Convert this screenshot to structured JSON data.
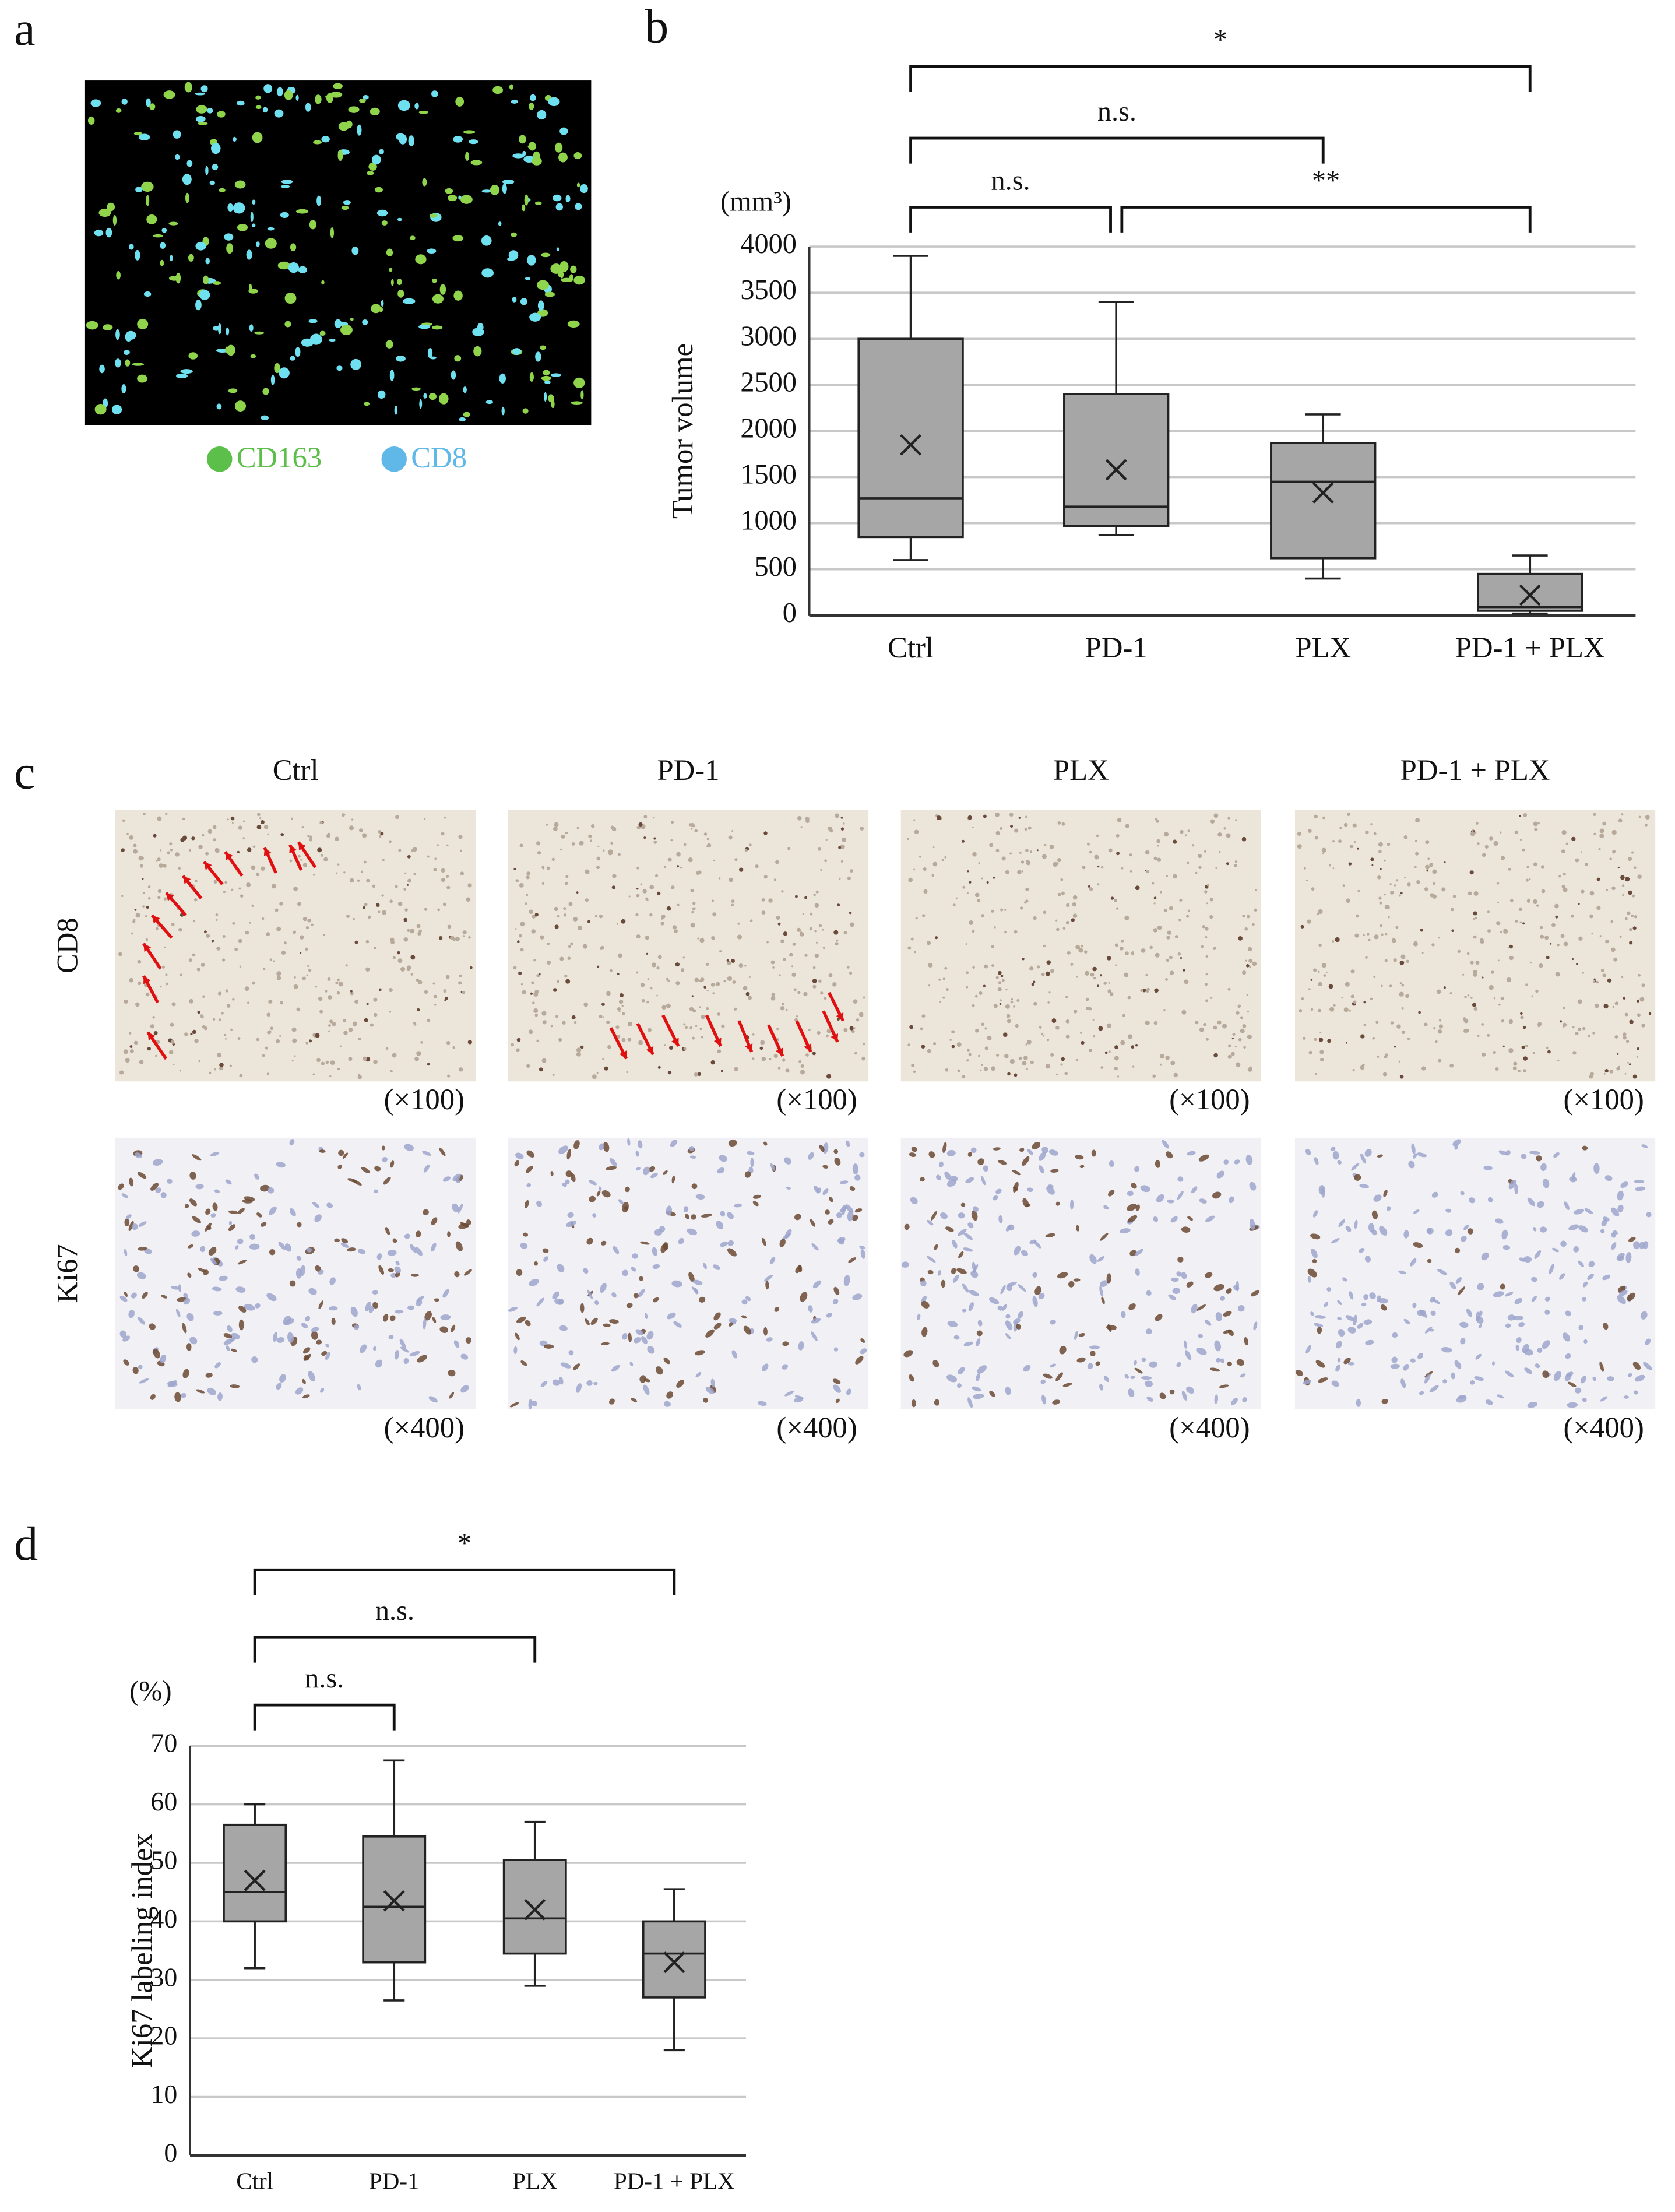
{
  "panel_a": {
    "letter": "a",
    "legend": [
      {
        "label": "CD163",
        "color": "#5cbf4a"
      },
      {
        "label": "CD8",
        "color": "#5fb8e8"
      }
    ]
  },
  "panel_c": {
    "letter": "c",
    "columns": [
      "Ctrl",
      "PD-1",
      "PLX",
      "PD-1 + PLX"
    ],
    "rows": [
      "CD8",
      "Ki67"
    ],
    "magnifications": [
      "(×100)",
      "(×400)"
    ]
  },
  "chart_data": [
    {
      "type": "box",
      "letter": "b",
      "y_label": "Tumor volume",
      "unit": "(mm³)",
      "categories": [
        "Ctrl",
        "PD-1",
        "PLX",
        "PD-1 + PLX"
      ],
      "color": "#a6a6a6",
      "boxes": [
        {
          "min": 600,
          "q1": 850,
          "median": 1270,
          "q3": 3000,
          "max": 3900,
          "mean": 1850
        },
        {
          "min": 870,
          "q1": 970,
          "median": 1180,
          "q3": 2400,
          "max": 3400,
          "mean": 1580
        },
        {
          "min": 400,
          "q1": 620,
          "median": 1450,
          "q3": 1870,
          "max": 2180,
          "mean": 1330
        },
        {
          "min": 20,
          "q1": 50,
          "median": 90,
          "q3": 450,
          "max": 650,
          "mean": 220
        }
      ],
      "ylim": [
        0,
        4000
      ],
      "yticks": [
        0,
        500,
        1000,
        1500,
        2000,
        2500,
        3000,
        3500,
        4000
      ],
      "grid": true,
      "annotations": [
        "*",
        "n.s.",
        "n.s.",
        "**"
      ]
    },
    {
      "type": "box",
      "letter": "d",
      "y_label": "Ki67 labeling index",
      "unit": "(%)",
      "categories": [
        "Ctrl",
        "PD-1",
        "PLX",
        "PD-1 + PLX"
      ],
      "color": "#a6a6a6",
      "boxes": [
        {
          "min": 32,
          "q1": 40,
          "median": 45,
          "q3": 56.5,
          "max": 60,
          "mean": 47
        },
        {
          "min": 26.5,
          "q1": 33,
          "median": 42.5,
          "q3": 54.5,
          "max": 67.5,
          "mean": 43.5
        },
        {
          "min": 29,
          "q1": 34.5,
          "median": 40.5,
          "q3": 50.5,
          "max": 57,
          "mean": 42
        },
        {
          "min": 18,
          "q1": 27,
          "median": 34.5,
          "q3": 40,
          "max": 45.5,
          "mean": 33
        }
      ],
      "ylim": [
        0,
        70
      ],
      "yticks": [
        0,
        10,
        20,
        30,
        40,
        50,
        60,
        70
      ],
      "grid": true,
      "annotations": [
        "*",
        "n.s.",
        "n.s."
      ]
    }
  ]
}
